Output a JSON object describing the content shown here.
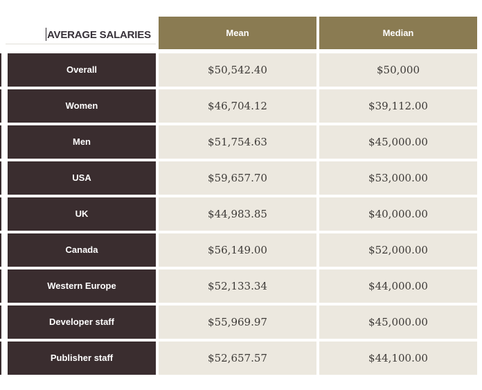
{
  "chart_data": {
    "type": "table",
    "title": "AVERAGE SALARIES",
    "columns": [
      "Mean",
      "Median"
    ],
    "rows": [
      {
        "label": "Overall",
        "mean": "$50,542.40",
        "median": "$50,000"
      },
      {
        "label": "Women",
        "mean": "$46,704.12",
        "median": "$39,112.00"
      },
      {
        "label": "Men",
        "mean": "$51,754.63",
        "median": "$45,000.00"
      },
      {
        "label": "USA",
        "mean": "$59,657.70",
        "median": "$53,000.00"
      },
      {
        "label": "UK",
        "mean": "$44,983.85",
        "median": "$40,000.00"
      },
      {
        "label": "Canada",
        "mean": "$56,149.00",
        "median": "$52,000.00"
      },
      {
        "label": "Western Europe",
        "mean": "$52,133.34",
        "median": "$44,000.00"
      },
      {
        "label": "Developer staff",
        "mean": "$55,969.97",
        "median": "$45,000.00"
      },
      {
        "label": "Publisher staff",
        "mean": "$52,657.57",
        "median": "$44,100.00"
      }
    ]
  },
  "colors": {
    "header_gold": "#8a7b52",
    "row_label_dark": "#3a2d2f",
    "value_cell_beige": "#ece8df",
    "page_background": "#ffffff",
    "value_text": "#3e3b38",
    "title_text": "#373139"
  }
}
